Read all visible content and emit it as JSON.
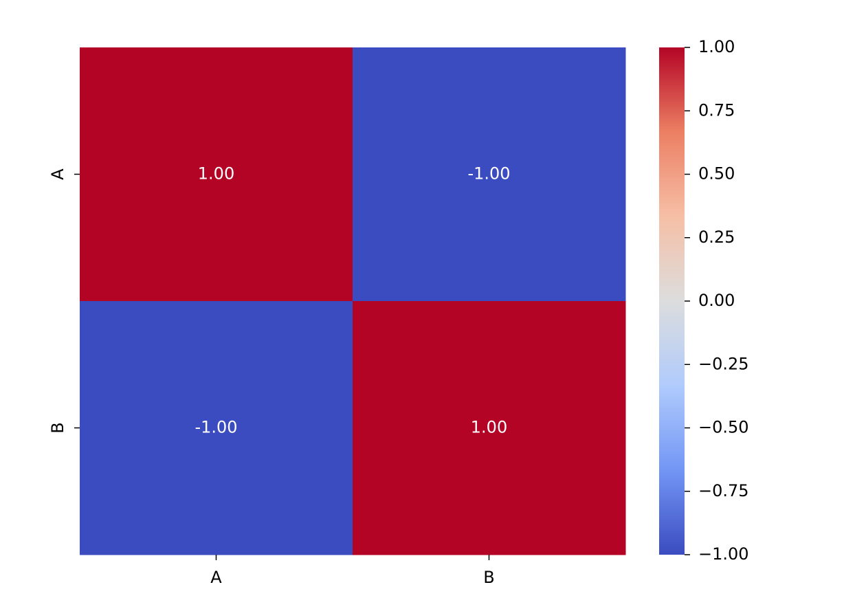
{
  "chart_data": {
    "type": "heatmap",
    "x_categories": [
      "A",
      "B"
    ],
    "y_categories": [
      "A",
      "B"
    ],
    "values": [
      [
        1,
        -1
      ],
      [
        -1,
        1
      ]
    ],
    "value_labels": [
      [
        "1.00",
        "-1.00"
      ],
      [
        "-1.00",
        "1.00"
      ]
    ],
    "colormap": [
      "#3b4cc0",
      "#7396f5",
      "#b0cbfc",
      "#dcdddd",
      "#f6bfa6",
      "#ec7f63",
      "#b40426"
    ],
    "clim": [
      -1,
      1
    ],
    "cticks": [
      {
        "value": -1,
        "label": "−1.00"
      },
      {
        "value": -0.75,
        "label": "−0.75"
      },
      {
        "value": -0.5,
        "label": "−0.50"
      },
      {
        "value": -0.25,
        "label": "−0.25"
      },
      {
        "value": 0,
        "label": "0.00"
      },
      {
        "value": 0.25,
        "label": "0.25"
      },
      {
        "value": 0.5,
        "label": "0.50"
      },
      {
        "value": 0.75,
        "label": "0.75"
      },
      {
        "value": 1,
        "label": "1.00"
      }
    ]
  }
}
